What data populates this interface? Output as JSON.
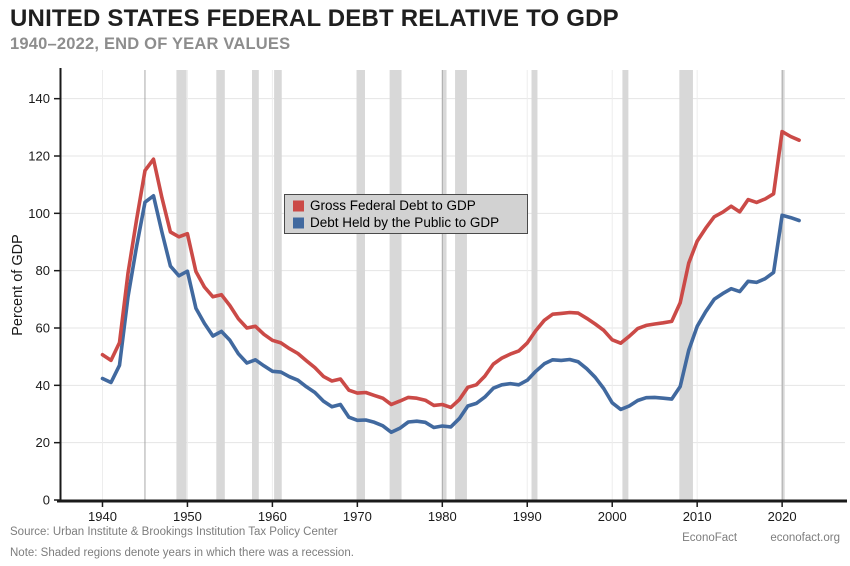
{
  "header": {
    "title": "UNITED STATES FEDERAL DEBT RELATIVE TO GDP",
    "subtitle": "1940–2022, END OF YEAR VALUES"
  },
  "footer": {
    "source": "Source: Urban Institute & Brookings Institution Tax Policy Center",
    "note": "Note: Shaded regions denote years in which there was a recession.",
    "brand": "EconoFact",
    "site": "econofact.org"
  },
  "chart_data": {
    "type": "line",
    "title": "United States Federal Debt Relative to GDP",
    "subtitle": "1940–2022, end of year values",
    "xlabel": "",
    "ylabel": "Percent of GDP",
    "x_start": 1940,
    "x_end": 2022,
    "years": [
      1940,
      1941,
      1942,
      1943,
      1944,
      1945,
      1946,
      1947,
      1948,
      1949,
      1950,
      1951,
      1952,
      1953,
      1954,
      1955,
      1956,
      1957,
      1958,
      1959,
      1960,
      1961,
      1962,
      1963,
      1964,
      1965,
      1966,
      1967,
      1968,
      1969,
      1970,
      1971,
      1972,
      1973,
      1974,
      1975,
      1976,
      1977,
      1978,
      1979,
      1980,
      1981,
      1982,
      1983,
      1984,
      1985,
      1986,
      1987,
      1988,
      1989,
      1990,
      1991,
      1992,
      1993,
      1994,
      1995,
      1996,
      1997,
      1998,
      1999,
      2000,
      2001,
      2002,
      2003,
      2004,
      2005,
      2006,
      2007,
      2008,
      2009,
      2010,
      2011,
      2012,
      2013,
      2014,
      2015,
      2016,
      2017,
      2018,
      2019,
      2020,
      2021,
      2022
    ],
    "series": [
      {
        "name": "Gross Federal Debt to GDP",
        "color": "#cb4a47",
        "values": [
          50.7,
          48.7,
          54.9,
          79.1,
          97.6,
          114.9,
          118.9,
          105.5,
          93.5,
          91.8,
          92.9,
          79.7,
          74.3,
          70.9,
          71.6,
          67.8,
          63.2,
          60.0,
          60.6,
          57.8,
          55.7,
          54.8,
          52.8,
          51.1,
          48.6,
          46.2,
          43.1,
          41.5,
          42.2,
          38.3,
          37.3,
          37.5,
          36.5,
          35.5,
          33.3,
          34.5,
          35.8,
          35.5,
          34.8,
          33.0,
          33.3,
          32.3,
          35.0,
          39.3,
          40.2,
          43.2,
          47.4,
          49.5,
          50.9,
          52.0,
          54.8,
          59.1,
          62.7,
          64.8,
          65.1,
          65.4,
          65.2,
          63.4,
          61.4,
          59.2,
          55.9,
          54.7,
          57.1,
          59.8,
          60.9,
          61.4,
          61.8,
          62.3,
          68.8,
          82.6,
          90.3,
          94.8,
          98.8,
          100.4,
          102.5,
          100.5,
          104.8,
          103.8,
          105.0,
          106.8,
          128.5,
          126.8,
          125.5
        ]
      },
      {
        "name": "Debt Held by the Public to GDP",
        "color": "#41699f",
        "values": [
          42.4,
          41.0,
          47.0,
          70.9,
          88.3,
          103.9,
          106.1,
          93.5,
          81.6,
          78.2,
          79.8,
          66.9,
          61.6,
          57.2,
          58.8,
          55.7,
          51.0,
          47.8,
          48.9,
          46.8,
          44.9,
          44.6,
          43.0,
          41.8,
          39.5,
          37.5,
          34.5,
          32.5,
          33.3,
          28.9,
          27.8,
          27.9,
          27.1,
          25.9,
          23.6,
          25.0,
          27.2,
          27.5,
          27.1,
          25.3,
          25.8,
          25.5,
          28.4,
          32.8,
          33.7,
          35.9,
          39.0,
          40.2,
          40.6,
          40.2,
          41.8,
          44.9,
          47.5,
          48.9,
          48.7,
          49.0,
          48.2,
          45.8,
          42.8,
          38.9,
          33.9,
          31.6,
          32.8,
          34.7,
          35.7,
          35.8,
          35.5,
          35.2,
          39.6,
          52.2,
          60.6,
          65.7,
          70.0,
          72.0,
          73.7,
          72.7,
          76.3,
          75.9,
          77.2,
          79.4,
          99.3,
          98.5,
          97.5
        ]
      }
    ],
    "xticks": [
      1940,
      1950,
      1960,
      1970,
      1980,
      1990,
      2000,
      2010,
      2020
    ],
    "yticks": [
      0,
      20,
      40,
      60,
      80,
      100,
      120,
      140
    ],
    "xlim": [
      1935,
      2027.4
    ],
    "ylim": [
      0,
      150
    ],
    "grid": "horizontal-light-plus-faint-decade-verticals",
    "legend_position": "upper-center-left-box",
    "reference_lines_x": [
      1945,
      1980,
      2020
    ],
    "recessions": [
      [
        1948.7,
        1949.9
      ],
      [
        1953.4,
        1954.4
      ],
      [
        1957.6,
        1958.4
      ],
      [
        1960.2,
        1961.1
      ],
      [
        1969.9,
        1970.9
      ],
      [
        1973.8,
        1975.2
      ],
      [
        1980.0,
        1980.5
      ],
      [
        1981.5,
        1982.9
      ],
      [
        1990.5,
        1991.2
      ],
      [
        2001.2,
        2001.9
      ],
      [
        2007.9,
        2009.5
      ],
      [
        2020.0,
        2020.3
      ]
    ],
    "colors": {
      "recession_band": "#d8d8d8",
      "grid_horizontal": "#e4e4e4",
      "grid_vertical_faint": "#ededed",
      "reference_line": "#a8a8a8",
      "axis": "#1a1a1a",
      "tick_label": "#1a1a1a",
      "legend_fill": "#d2d2d2",
      "legend_border": "#4a4a4a",
      "legend_text": "#000000"
    }
  }
}
